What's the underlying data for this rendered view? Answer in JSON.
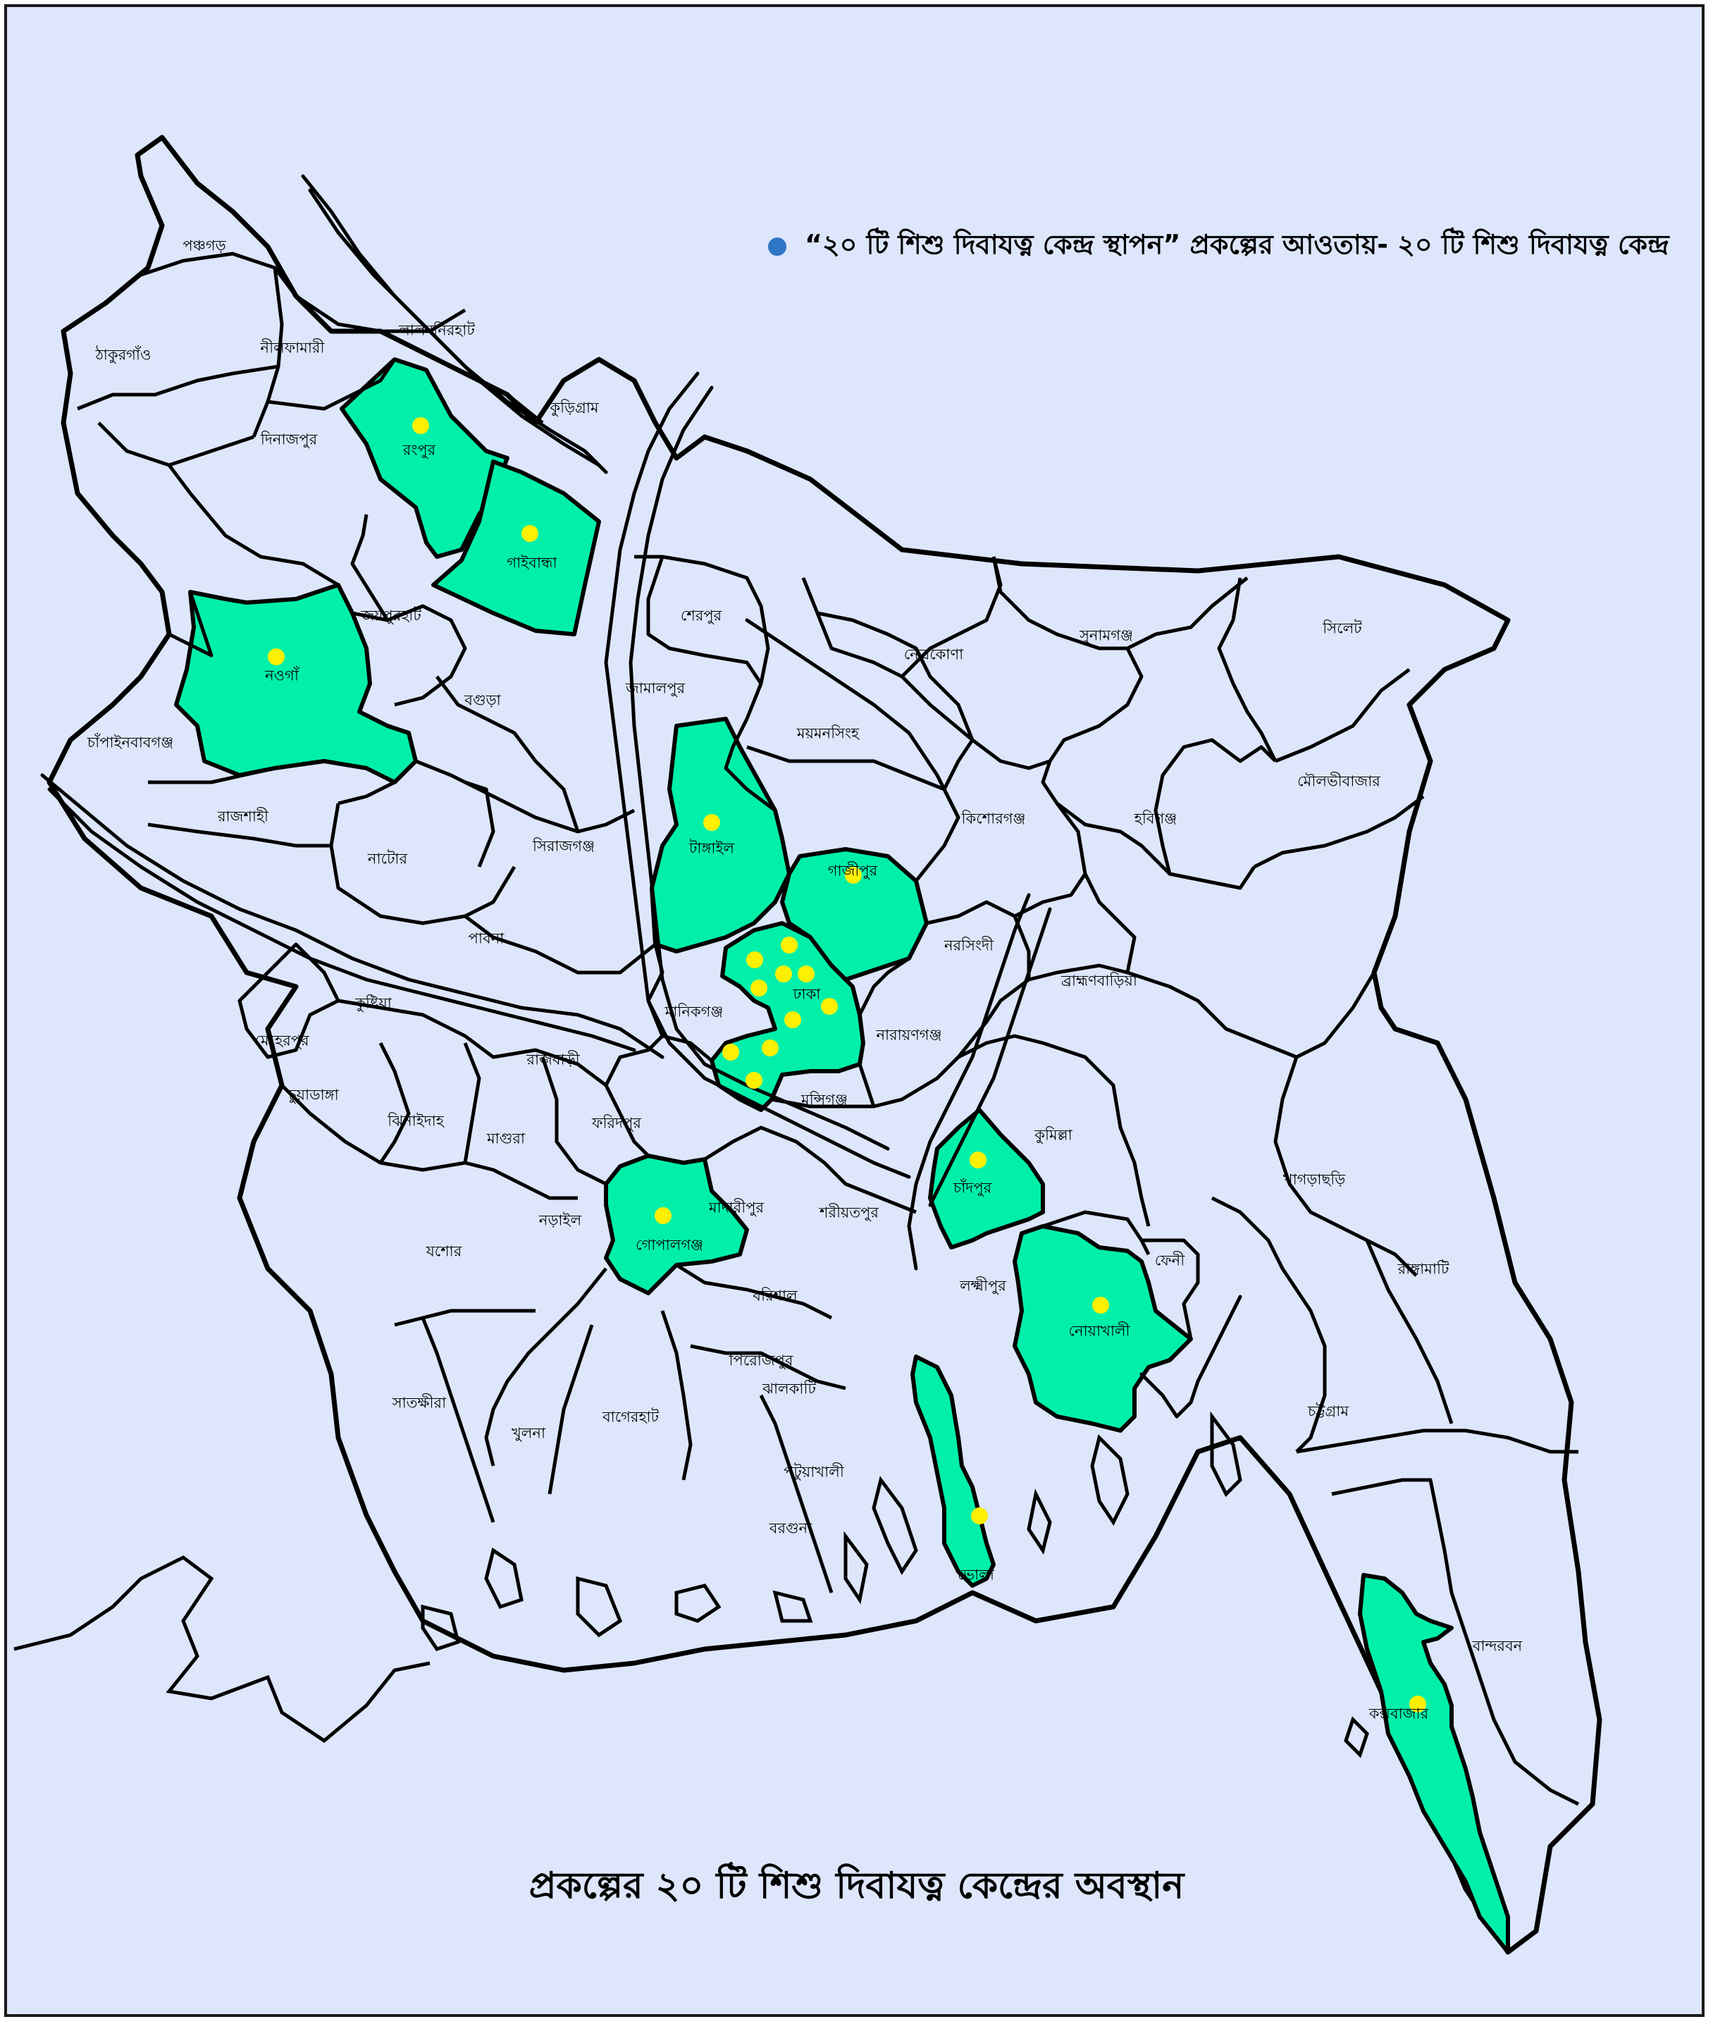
{
  "legend": {
    "text": "“২০ টি শিশু দিবাযত্ন কেন্দ্র স্থাপন” প্রকল্পের আওতায়- ২০ টি শিশু দিবাযত্ন কেন্দ্র",
    "marker_color": "#2e75c6"
  },
  "map_title": "প্রকল্পের ২০ টি শিশু দিবাযত্ন কেন্দ্রের অবস্থান",
  "colors": {
    "background": "#dde6fb",
    "highlight_fill": "#00f0aa",
    "border": "#000000",
    "center_marker": "#ffef00"
  },
  "districts": [
    "পঞ্চগড়",
    "ঠাকুরগাঁও",
    "নীলফামারী",
    "লালমনিরহাট",
    "কুড়িগ্রাম",
    "দিনাজপুর",
    "রংপুর",
    "গাইবান্ধা",
    "জয়পুরহাট",
    "নওগাঁ",
    "বগুড়া",
    "চাঁপাইনবাবগঞ্জ",
    "রাজশাহী",
    "নাটোর",
    "সিরাজগঞ্জ",
    "পাবনা",
    "শেরপুর",
    "জামালপুর",
    "নেত্রকোণা",
    "সুনামগঞ্জ",
    "সিলেট",
    "ময়মনসিংহ",
    "কিশোরগঞ্জ",
    "হবিগঞ্জ",
    "মৌলভীবাজার",
    "টাঙ্গাইল",
    "গাজীপুর",
    "নরসিংদী",
    "ব্রাহ্মণবাড়িয়া",
    "ঢাকা",
    "মানিকগঞ্জ",
    "নারায়ণগঞ্জ",
    "কুষ্টিয়া",
    "মেহেরপুর",
    "চুয়াডাঙ্গা",
    "রাজবাড়ী",
    "ঝিনাইদাহ",
    "মাগুরা",
    "ফরিদপুর",
    "মুন্সিগঞ্জ",
    "কুমিল্লা",
    "চাঁদপুর",
    "মাদারীপুর",
    "শরীয়তপুর",
    "গোপালগঞ্জ",
    "নড়াইল",
    "যশোর",
    "বরিশাল",
    "লক্ষ্মীপুর",
    "ফেনী",
    "নোয়াখালী",
    "খাগড়াছড়ি",
    "রাঙ্গামাটি",
    "চট্টগ্রাম",
    "পিরোজপুর",
    "ঝালকাটি",
    "সাতক্ষীরা",
    "খুলনা",
    "বাগেরহাট",
    "পটুয়াখালী",
    "বরগুনা",
    "ভোলা",
    "বান্দরবন",
    "কক্সবাজার"
  ],
  "highlighted_districts": [
    "রংপুর",
    "গাইবান্ধা",
    "নওগাঁ",
    "টাঙ্গাইল",
    "গাজীপুর",
    "ঢাকা",
    "গোপালগঞ্জ",
    "চাঁদপুর",
    "নোয়াখালী",
    "ভোলা",
    "কক্সবাজার"
  ],
  "centers_per_district": {
    "রংপুর": 1,
    "গাইবান্ধা": 1,
    "নওগাঁ": 1,
    "টাঙ্গাইল": 1,
    "গাজীপুর": 1,
    "ঢাকা": 10,
    "গোপালগঞ্জ": 1,
    "চাঁদপুর": 1,
    "নোয়াখালী": 1,
    "ভোলা": 1,
    "কক্সবাজার": 1
  },
  "total_centers": 20
}
